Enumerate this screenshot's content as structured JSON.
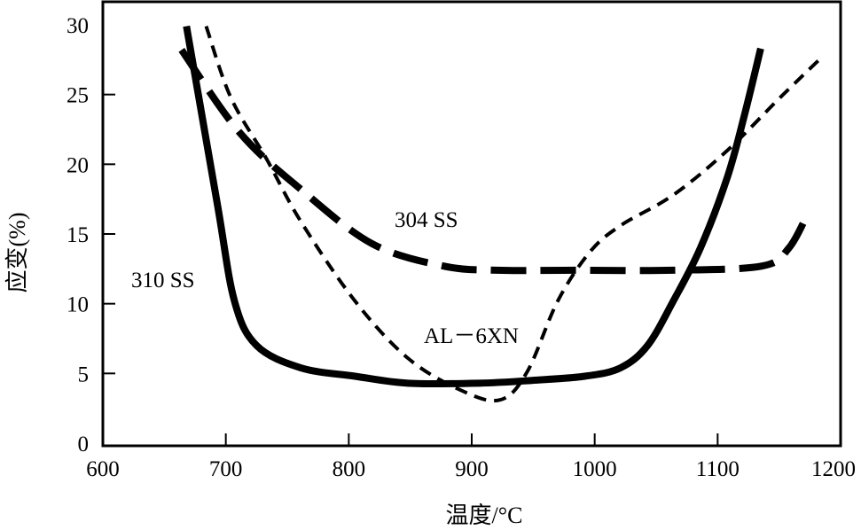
{
  "chart_data": {
    "type": "line",
    "title": "",
    "xlabel": "温度/°C",
    "ylabel": "应变(%)",
    "xlim": [
      600,
      1200
    ],
    "ylim": [
      0,
      30
    ],
    "xticks": [
      600,
      700,
      800,
      900,
      1000,
      1100,
      1200
    ],
    "yticks": [
      0,
      5,
      10,
      15,
      20,
      25,
      30
    ],
    "grid": false,
    "legend": "none (inline labels)",
    "series": [
      {
        "name": "310 SS",
        "style": "solid-thick",
        "x": [
          668,
          693,
          707,
          725,
          761,
          805,
          848,
          906,
          949,
          992,
          1021,
          1043,
          1064,
          1086,
          1108,
          1122,
          1135
        ],
        "y": [
          29.9,
          17.2,
          10.2,
          7.0,
          5.4,
          4.8,
          4.3,
          4.3,
          4.5,
          4.8,
          5.4,
          7.0,
          10.2,
          14.0,
          19.1,
          23.6,
          28.3
        ]
      },
      {
        "name": "304 SS",
        "style": "long-dash",
        "x": [
          664,
          711,
          761,
          819,
          877,
          920,
          985,
          1064,
          1136,
          1158,
          1174
        ],
        "y": [
          28.2,
          22.3,
          18.2,
          14.3,
          12.7,
          12.4,
          12.4,
          12.4,
          12.7,
          14.0,
          16.6
        ]
      },
      {
        "name": "AL－6XN",
        "style": "short-dash",
        "x": [
          684,
          704,
          733,
          761,
          805,
          848,
          891,
          923,
          945,
          970,
          996,
          1021,
          1064,
          1108,
          1151,
          1185
        ],
        "y": [
          29.9,
          24.8,
          20.4,
          15.9,
          10.2,
          6.1,
          3.8,
          3.1,
          5.1,
          10.2,
          13.7,
          15.6,
          17.8,
          21.0,
          24.8,
          27.7
        ]
      }
    ],
    "annotations": [
      "304 SS",
      "310 SS",
      "AL－6XN"
    ]
  }
}
